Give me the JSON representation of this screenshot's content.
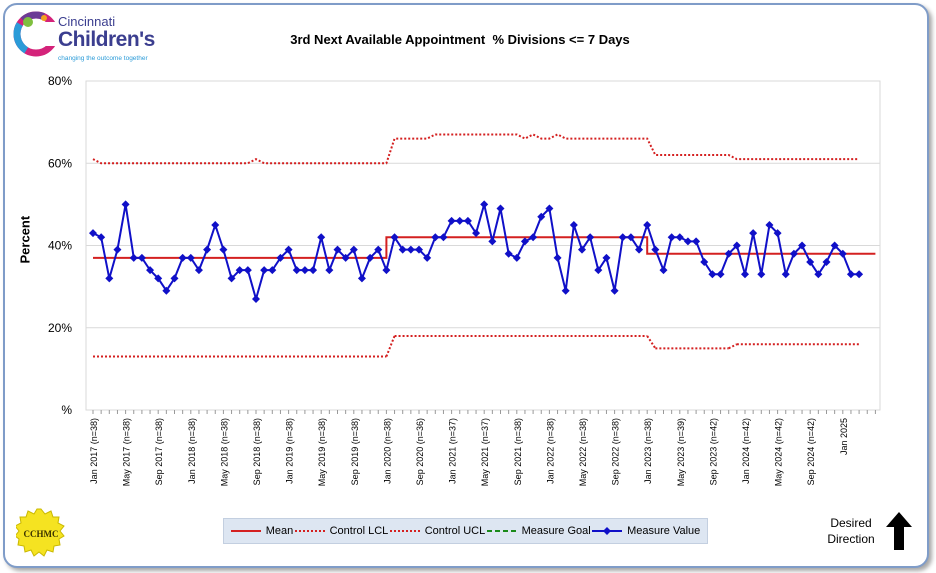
{
  "header": {
    "logo_line1": "Cincinnati",
    "logo_line2": "Children's",
    "logo_tagline": "changing the outcome together",
    "seal_text": "CCHMC"
  },
  "chart_data": {
    "type": "line",
    "title": "3rd Next Available Appointment  % Divisions <= 7 Days",
    "ylabel": "Percent",
    "ylim": [
      0,
      80
    ],
    "yticks": [
      0,
      20,
      40,
      60,
      80
    ],
    "ytick_labels": [
      "%",
      "20%",
      "40%",
      "60%",
      "80%"
    ],
    "grid": true,
    "legend_position": "bottom",
    "x_tick_labels": [
      "Jan 2017 (n=38)",
      "May 2017 (n=38)",
      "Sep 2017 (n=38)",
      "Jan 2018 (n=38)",
      "May 2018 (n=38)",
      "Sep 2018 (n=38)",
      "Jan 2019 (n=38)",
      "May 2019 (n=38)",
      "Sep 2019 (n=38)",
      "Jan 2020 (n=38)",
      "Sep 2020 (n=36)",
      "Jan 2021 (n=37)",
      "May 2021 (n=37)",
      "Sep 2021 (n=38)",
      "Jan 2022 (n=38)",
      "May 2022 (n=38)",
      "Sep 2022 (n=38)",
      "Jan 2023 (n=38)",
      "May 2023 (n=39)",
      "Sep 2023 (n=42)",
      "Jan 2024 (n=42)",
      "May 2024 (n=42)",
      "Sep 2024 (n=42)",
      "Jan 2025"
    ],
    "x_tick_index": [
      0,
      4,
      8,
      12,
      16,
      20,
      24,
      28,
      32,
      36,
      40,
      44,
      48,
      52,
      56,
      60,
      64,
      68,
      72,
      76,
      80,
      84,
      88,
      92
    ],
    "x_count": 97,
    "series": [
      {
        "name": "Measure Value",
        "color": "#1010c8",
        "values": [
          43,
          42,
          32,
          39,
          50,
          37,
          37,
          34,
          32,
          29,
          32,
          37,
          37,
          34,
          39,
          45,
          39,
          32,
          34,
          34,
          27,
          34,
          34,
          37,
          39,
          34,
          34,
          34,
          42,
          34,
          39,
          37,
          39,
          32,
          37,
          39,
          34,
          42,
          39,
          39,
          39,
          37,
          42,
          42,
          46,
          46,
          46,
          43,
          50,
          41,
          49,
          38,
          37,
          41,
          42,
          47,
          49,
          37,
          29,
          45,
          39,
          42,
          34,
          37,
          29,
          42,
          42,
          39,
          45,
          39,
          34,
          42,
          42,
          41,
          41,
          36,
          33,
          33,
          38,
          40,
          33,
          43,
          33,
          45,
          43,
          33,
          38,
          40,
          36,
          33,
          36,
          40,
          38,
          33,
          33
        ]
      },
      {
        "name": "Mean",
        "color": "#d42020",
        "segments": [
          {
            "from": 0,
            "to": 36,
            "value": 37
          },
          {
            "from": 36,
            "to": 68,
            "value": 42
          },
          {
            "from": 68,
            "to": 96,
            "value": 38
          }
        ]
      },
      {
        "name": "Control LCL",
        "color": "#d42020",
        "segments": [
          {
            "from": 0,
            "to": 36,
            "value": 13
          },
          {
            "from": 37,
            "to": 68,
            "value": 18
          },
          {
            "from": 69,
            "to": 78,
            "value": 15
          },
          {
            "from": 79,
            "to": 94,
            "value": 16
          }
        ]
      },
      {
        "name": "Control UCL",
        "color": "#d42020",
        "values": [
          61,
          60,
          60,
          60,
          60,
          60,
          60,
          60,
          60,
          60,
          60,
          60,
          60,
          60,
          60,
          60,
          60,
          60,
          60,
          60,
          61,
          60,
          60,
          60,
          60,
          60,
          60,
          60,
          60,
          60,
          60,
          60,
          60,
          60,
          60,
          60,
          60,
          66,
          66,
          66,
          66,
          66,
          67,
          67,
          67,
          67,
          67,
          67,
          67,
          67,
          67,
          67,
          67,
          66,
          67,
          66,
          66,
          67,
          66,
          66,
          66,
          66,
          66,
          66,
          66,
          66,
          66,
          66,
          66,
          62,
          62,
          62,
          62,
          62,
          62,
          62,
          62,
          62,
          62,
          61,
          61,
          61,
          61,
          61,
          61,
          61,
          61,
          61,
          61,
          61,
          61,
          61,
          61,
          61,
          61
        ]
      },
      {
        "name": "Measure Goal",
        "color": "#1a8a1a",
        "values": []
      }
    ]
  },
  "legend": {
    "items": [
      {
        "label": "Mean",
        "style": "solid-red"
      },
      {
        "label": "Control LCL",
        "style": "dotted-red"
      },
      {
        "label": "Control UCL",
        "style": "dotted-red"
      },
      {
        "label": "Measure Goal",
        "style": "dashed-green"
      },
      {
        "label": "Measure Value",
        "style": "line-marker-blue"
      }
    ]
  },
  "direction": {
    "label_line1": "Desired",
    "label_line2": "Direction"
  },
  "colors": {
    "frame": "#7f9cc8",
    "red": "#d42020",
    "blue": "#1010c8",
    "green": "#1a8a1a",
    "legend_bg": "#dde6f2"
  }
}
